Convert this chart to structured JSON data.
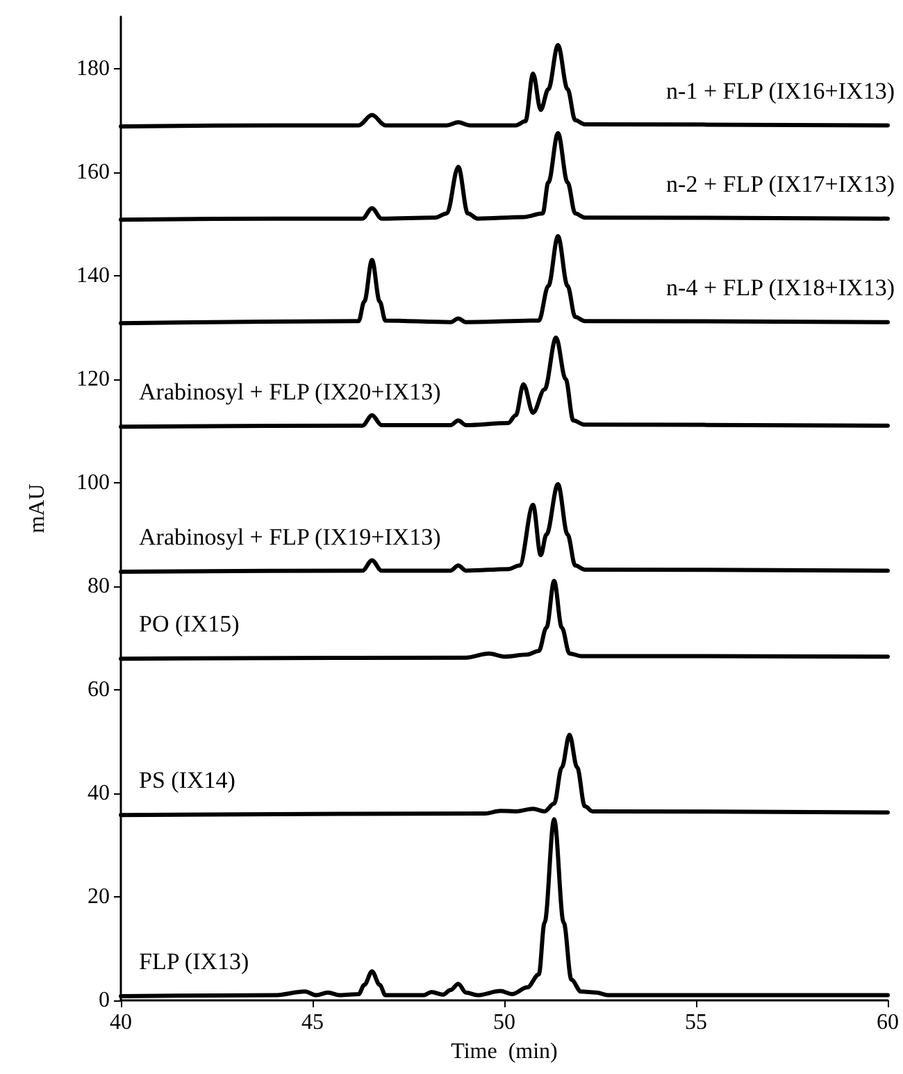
{
  "chart_data": {
    "type": "line",
    "xlabel": "Time  (min)",
    "ylabel": "mAU",
    "xlim": [
      40,
      60
    ],
    "xticks": [
      40,
      45,
      50,
      55,
      60
    ],
    "ylim": [
      0,
      190
    ],
    "yticks": [
      0,
      20,
      40,
      60,
      80,
      100,
      120,
      140,
      160,
      180
    ],
    "grid": false,
    "legend": false,
    "marker": "none",
    "line_style": "solid",
    "series": [
      {
        "name": "n-1 + FLP (IX16+IX13)",
        "color": "#000000",
        "x": [
          40,
          44,
          46.2,
          46.55,
          46.9,
          48.5,
          48.8,
          49.1,
          50.3,
          50.55,
          50.75,
          50.95,
          51.15,
          51.4,
          51.65,
          51.85,
          52.1,
          60
        ],
        "values": [
          168.8,
          169,
          169,
          171,
          169,
          169,
          169.6,
          169,
          169,
          169.8,
          179,
          172,
          176,
          184.5,
          176,
          170,
          169.2,
          169
        ]
      },
      {
        "name": "n-2 + FLP (IX17+IX13)",
        "color": "#000000",
        "x": [
          40,
          44,
          46.3,
          46.55,
          46.8,
          48.2,
          48.5,
          48.8,
          49.05,
          49.3,
          50.5,
          51,
          51.15,
          51.4,
          51.65,
          51.85,
          52.1,
          60
        ],
        "values": [
          150.8,
          151,
          151,
          153,
          151,
          151.2,
          152,
          161,
          152,
          151,
          151.3,
          152,
          158,
          167.5,
          158,
          152,
          151.2,
          151
        ]
      },
      {
        "name": "n-4 + FLP (IX18+IX13)",
        "color": "#000000",
        "x": [
          40,
          46.2,
          46.35,
          46.55,
          46.75,
          46.9,
          48.6,
          48.8,
          49,
          50.9,
          51.15,
          51.4,
          51.65,
          51.85,
          52.1,
          60
        ],
        "values": [
          130.8,
          131.2,
          135,
          143,
          135,
          131.3,
          131,
          131.7,
          131,
          131.3,
          138,
          147.6,
          138,
          132,
          131.2,
          131
        ]
      },
      {
        "name": "Arabinosyl + FLP (IX20+IX13)",
        "color": "#000000",
        "x": [
          40,
          46.3,
          46.55,
          46.8,
          48.6,
          48.8,
          49,
          50.1,
          50.3,
          50.5,
          50.75,
          51.05,
          51.35,
          51.6,
          51.8,
          52.1,
          60
        ],
        "values": [
          110.8,
          111,
          113,
          111.1,
          111.1,
          112,
          111.1,
          111.5,
          113,
          119,
          113.5,
          118,
          128,
          120,
          112,
          111.2,
          111
        ]
      },
      {
        "name": "Arabinosyl + FLP (IX19+IX13)",
        "color": "#000000",
        "x": [
          40,
          46.3,
          46.55,
          46.8,
          48.6,
          48.8,
          49,
          50.1,
          50.4,
          50.75,
          50.95,
          51.1,
          51.4,
          51.65,
          51.85,
          52.1,
          60
        ],
        "values": [
          82.8,
          83,
          85,
          83,
          83,
          84,
          83,
          83.3,
          84,
          95.7,
          86,
          90,
          99.7,
          90,
          84,
          83.2,
          83
        ]
      },
      {
        "name": "PO (IX15)",
        "color": "#000000",
        "x": [
          40,
          49,
          49.6,
          50,
          50.6,
          50.9,
          51.1,
          51.3,
          51.5,
          51.7,
          52,
          60
        ],
        "values": [
          66,
          66.2,
          67,
          66.4,
          66.8,
          67.5,
          72,
          81,
          72,
          67,
          66.5,
          66.4
        ]
      },
      {
        "name": "PS (IX14)",
        "color": "#000000",
        "x": [
          40,
          49.5,
          49.9,
          50.3,
          50.75,
          51.05,
          51.3,
          51.5,
          51.7,
          51.9,
          52.1,
          52.3,
          60
        ],
        "values": [
          35.8,
          36.1,
          36.6,
          36.5,
          37,
          36.5,
          38,
          45,
          51.3,
          45,
          37.5,
          36.5,
          36.3
        ]
      },
      {
        "name": "FLP (IX13)",
        "color": "#000000",
        "x": [
          40,
          44,
          44.8,
          45.1,
          45.4,
          45.7,
          46.2,
          46.35,
          46.55,
          46.75,
          46.9,
          47.9,
          48.1,
          48.4,
          48.6,
          48.8,
          49,
          49.3,
          49.9,
          50.2,
          50.6,
          50.9,
          51.05,
          51.3,
          51.55,
          51.75,
          52,
          52.4,
          52.7,
          60
        ],
        "values": [
          0.8,
          1,
          1.7,
          1,
          1.5,
          1,
          1.2,
          3,
          5.6,
          3,
          1,
          1,
          1.6,
          1.1,
          2,
          3.2,
          1.5,
          1,
          1.8,
          1.2,
          2.5,
          5,
          15,
          35,
          15,
          4,
          1.7,
          1.5,
          1,
          1
        ]
      }
    ]
  }
}
